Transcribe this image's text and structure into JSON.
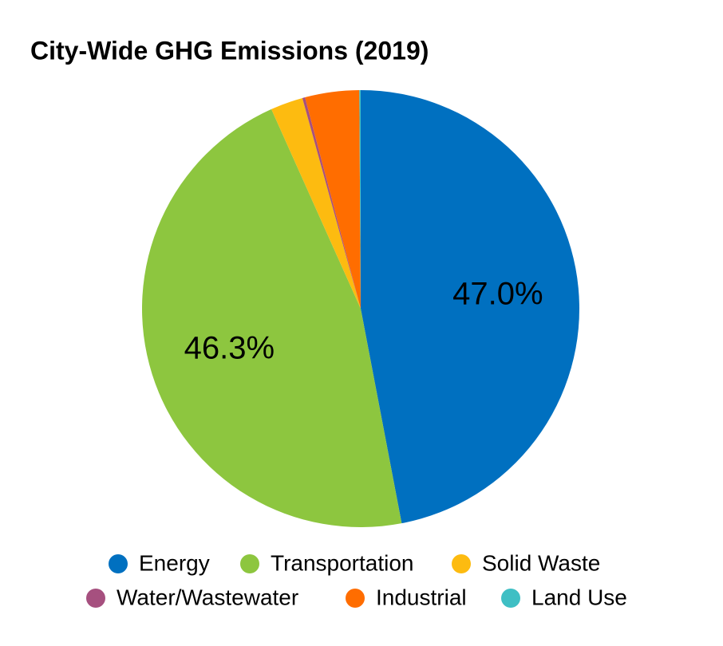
{
  "chart_data": {
    "type": "pie",
    "title": "City-Wide GHG Emissions (2019)",
    "categories": [
      "Energy",
      "Transportation",
      "Solid Waste",
      "Water/Wastewater",
      "Industrial",
      "Land Use"
    ],
    "values": [
      47.0,
      46.3,
      2.4,
      0.2,
      4.0,
      0.1
    ],
    "value_labels": [
      "47.0%",
      "46.3%",
      null,
      null,
      null,
      null
    ],
    "colors": [
      "#0070c0",
      "#8dc63f",
      "#fdbb10",
      "#a6507f",
      "#ff6d00",
      "#3fbfc4"
    ]
  }
}
